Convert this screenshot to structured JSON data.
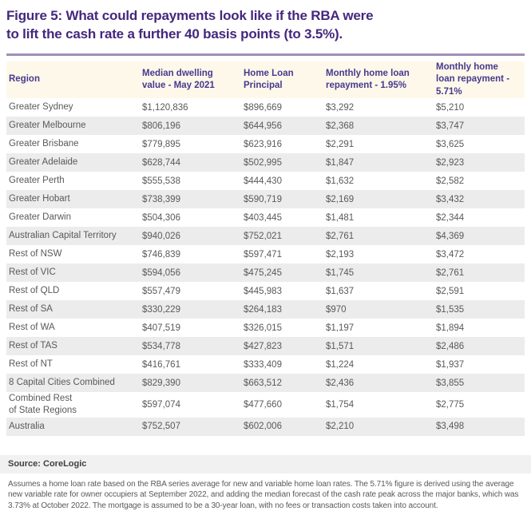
{
  "figure": {
    "title": "Figure 5: What could repayments look like if the RBA were\nto lift the cash rate a further 40 basis points (to 3.5%)."
  },
  "chart_data": {
    "type": "table",
    "title": "Figure 5: What could repayments look like if the RBA were to lift the cash rate a further 40 basis points (to 3.5%).",
    "columns": [
      "Region",
      "Median dwelling value - May 2021",
      "Home Loan Principal",
      "Monthly home loan repayment - 1.95%",
      "Monthly home loan repayment - 5.71%"
    ],
    "rows": [
      [
        "Greater Sydney",
        "$1,120,836",
        "$896,669",
        "$3,292",
        "$5,210"
      ],
      [
        "Greater Melbourne",
        "$806,196",
        "$644,956",
        "$2,368",
        "$3,747"
      ],
      [
        "Greater Brisbane",
        "$779,895",
        "$623,916",
        "$2,291",
        "$3,625"
      ],
      [
        "Greater Adelaide",
        "$628,744",
        "$502,995",
        "$1,847",
        "$2,923"
      ],
      [
        "Greater Perth",
        "$555,538",
        "$444,430",
        "$1,632",
        "$2,582"
      ],
      [
        "Greater Hobart",
        "$738,399",
        "$590,719",
        "$2,169",
        "$3,432"
      ],
      [
        "Greater Darwin",
        "$504,306",
        "$403,445",
        "$1,481",
        "$2,344"
      ],
      [
        "Australian Capital Territory",
        "$940,026",
        "$752,021",
        "$2,761",
        "$4,369"
      ],
      [
        "Rest of NSW",
        "$746,839",
        "$597,471",
        "$2,193",
        "$3,472"
      ],
      [
        "Rest of VIC",
        "$594,056",
        "$475,245",
        "$1,745",
        "$2,761"
      ],
      [
        "Rest of QLD",
        "$557,479",
        "$445,983",
        "$1,637",
        "$2,591"
      ],
      [
        "Rest of SA",
        "$330,229",
        "$264,183",
        "$970",
        "$1,535"
      ],
      [
        "Rest of WA",
        "$407,519",
        "$326,015",
        "$1,197",
        "$1,894"
      ],
      [
        "Rest of TAS",
        "$534,778",
        "$427,823",
        "$1,571",
        "$2,486"
      ],
      [
        "Rest of NT",
        "$416,761",
        "$333,409",
        "$1,224",
        "$1,937"
      ],
      [
        "8 Capital Cities Combined",
        "$829,390",
        "$663,512",
        "$2,436",
        "$3,855"
      ],
      [
        "Combined Rest\nof State Regions",
        "$597,074",
        "$477,660",
        "$1,754",
        "$2,775"
      ],
      [
        "Australia",
        "$752,507",
        "$602,006",
        "$2,210",
        "$3,498"
      ]
    ]
  },
  "footer": {
    "source_label": "Source: CoreLogic",
    "note": "Assumes a home loan rate based on the RBA series average for new and variable home loan rates. The 5.71% figure is derived using the average new variable rate for owner occupiers at September 2022, and adding the median forecast of the cash rate peak across the major banks, which was 3.73% at October 2022. The mortgage is assumed to be a 30-year loan, with no fees or transaction costs taken into account."
  },
  "colors": {
    "title_purple": "#44277d",
    "rule_purple": "#a18fb7",
    "header_bg_cream": "#fdf8e9",
    "header_text_purple": "#473a8f",
    "row_stripe_gray": "#ececec",
    "body_text_gray": "#58595b",
    "source_band_gray": "#f1f1f1"
  }
}
